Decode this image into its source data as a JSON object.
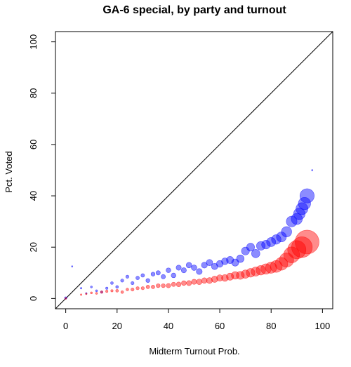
{
  "chart_data": {
    "type": "scatter",
    "title": "GA-6 special, by party and turnout",
    "xlabel": "Midterm Turnout Prob.",
    "ylabel": "Pct. Voted",
    "xlim": [
      -4,
      104
    ],
    "ylim": [
      -4,
      104
    ],
    "xticks": [
      "0",
      "20",
      "40",
      "60",
      "80",
      "100"
    ],
    "yticks": [
      "0",
      "20",
      "40",
      "60",
      "80",
      "100"
    ],
    "reference_line": "y = x",
    "colors": {
      "blue": "#0000ff",
      "red": "#ff0000"
    },
    "series": [
      {
        "color": "blue",
        "points": [
          [
            0,
            0.2,
            0.3
          ],
          [
            2.5,
            12.5,
            0.15
          ],
          [
            6,
            4,
            0.2
          ],
          [
            8,
            2,
            0.2
          ],
          [
            10,
            4.5,
            0.25
          ],
          [
            12,
            3,
            0.25
          ],
          [
            14,
            2.5,
            0.3
          ],
          [
            16,
            4,
            0.3
          ],
          [
            18,
            6,
            0.35
          ],
          [
            20,
            4.5,
            0.35
          ],
          [
            22,
            7,
            0.4
          ],
          [
            24,
            8.5,
            0.4
          ],
          [
            26,
            6,
            0.4
          ],
          [
            28,
            8,
            0.45
          ],
          [
            30,
            9,
            0.45
          ],
          [
            32,
            7,
            0.5
          ],
          [
            34,
            9.5,
            0.5
          ],
          [
            36,
            10,
            0.55
          ],
          [
            38,
            8.5,
            0.55
          ],
          [
            40,
            11,
            0.6
          ],
          [
            42,
            9,
            0.6
          ],
          [
            44,
            12,
            0.65
          ],
          [
            46,
            11,
            0.65
          ],
          [
            48,
            13,
            0.7
          ],
          [
            50,
            12,
            0.7
          ],
          [
            52,
            10.5,
            0.75
          ],
          [
            54,
            13,
            0.75
          ],
          [
            56,
            14,
            0.8
          ],
          [
            58,
            12.5,
            0.8
          ],
          [
            60,
            13.5,
            0.85
          ],
          [
            62,
            14.5,
            0.85
          ],
          [
            64,
            15,
            0.9
          ],
          [
            66,
            14,
            0.9
          ],
          [
            68,
            15.5,
            0.95
          ],
          [
            70,
            18.5,
            1.0
          ],
          [
            72,
            20,
            1.0
          ],
          [
            74,
            17.5,
            1.05
          ],
          [
            76,
            20.5,
            1.1
          ],
          [
            78,
            21,
            1.1
          ],
          [
            80,
            22,
            1.15
          ],
          [
            82,
            23,
            1.2
          ],
          [
            84,
            24,
            1.25
          ],
          [
            86,
            26,
            1.3
          ],
          [
            88,
            30,
            1.35
          ],
          [
            90,
            31,
            1.4
          ],
          [
            91,
            33,
            1.45
          ],
          [
            92,
            35,
            1.5
          ],
          [
            93,
            37,
            1.55
          ],
          [
            94,
            40,
            1.8
          ],
          [
            96,
            50,
            0.15
          ]
        ]
      },
      {
        "color": "red",
        "points": [
          [
            0,
            0,
            0.2
          ],
          [
            6,
            1.5,
            0.2
          ],
          [
            8,
            1.8,
            0.2
          ],
          [
            10,
            2.2,
            0.25
          ],
          [
            12,
            2,
            0.25
          ],
          [
            14,
            2.5,
            0.3
          ],
          [
            16,
            2.8,
            0.3
          ],
          [
            18,
            3,
            0.3
          ],
          [
            20,
            3,
            0.35
          ],
          [
            22,
            2.5,
            0.35
          ],
          [
            24,
            3.5,
            0.35
          ],
          [
            26,
            3.5,
            0.4
          ],
          [
            28,
            4,
            0.4
          ],
          [
            30,
            4,
            0.4
          ],
          [
            32,
            4.5,
            0.45
          ],
          [
            34,
            4.5,
            0.45
          ],
          [
            36,
            5,
            0.5
          ],
          [
            38,
            5,
            0.5
          ],
          [
            40,
            5,
            0.55
          ],
          [
            42,
            5.5,
            0.55
          ],
          [
            44,
            5.5,
            0.6
          ],
          [
            46,
            6,
            0.6
          ],
          [
            48,
            6,
            0.65
          ],
          [
            50,
            6.5,
            0.65
          ],
          [
            52,
            6.5,
            0.7
          ],
          [
            54,
            7,
            0.7
          ],
          [
            56,
            7,
            0.75
          ],
          [
            58,
            7.5,
            0.8
          ],
          [
            60,
            8,
            0.8
          ],
          [
            62,
            8,
            0.85
          ],
          [
            64,
            8.5,
            0.9
          ],
          [
            66,
            9,
            0.95
          ],
          [
            68,
            9,
            1.0
          ],
          [
            70,
            9.5,
            1.05
          ],
          [
            72,
            10,
            1.1
          ],
          [
            74,
            10.5,
            1.15
          ],
          [
            76,
            11,
            1.2
          ],
          [
            78,
            11.5,
            1.3
          ],
          [
            80,
            12,
            1.4
          ],
          [
            82,
            12.5,
            1.5
          ],
          [
            84,
            13.5,
            1.6
          ],
          [
            86,
            15,
            1.8
          ],
          [
            88,
            17,
            2.0
          ],
          [
            90,
            19,
            2.3
          ],
          [
            92,
            20,
            2.6
          ],
          [
            94,
            22,
            3.0
          ]
        ]
      }
    ]
  }
}
